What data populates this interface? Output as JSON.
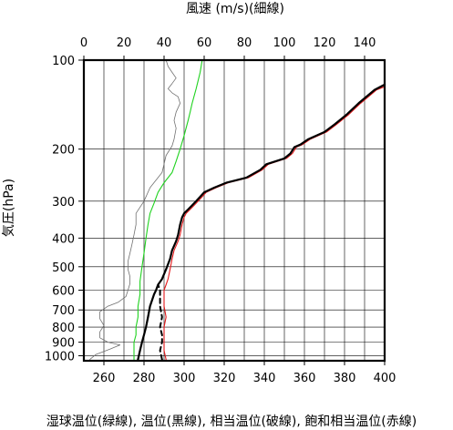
{
  "chart_data": {
    "type": "line",
    "title": "",
    "top_axis_title": "風速 (m/s)(細線)",
    "y_axis_title": "気圧(hPa)",
    "x_axis_title": "湿球温位(緑線), 温位(黒線), 相当温位(破線), 飽和相当温位(赤線)",
    "y_scale": "log-pressure",
    "xlim_temperature_K": [
      250,
      400
    ],
    "xlim_wind_ms": [
      0,
      150
    ],
    "ylim_pressure_hPa": [
      1040,
      100
    ],
    "grid": true,
    "bottom_ticks": [
      "260",
      "280",
      "300",
      "320",
      "340",
      "360",
      "380",
      "400"
    ],
    "top_ticks": [
      "0",
      "20",
      "40",
      "60",
      "80",
      "100",
      "120",
      "140"
    ],
    "left_ticks": [
      "100",
      "200",
      "300",
      "400",
      "500",
      "600",
      "700",
      "800",
      "900",
      "1000"
    ],
    "series": [
      {
        "name": "温位(黒線)",
        "color": "#000000",
        "axis": "temperature",
        "style": "solid-thick",
        "points": [
          [
            277,
            1030
          ],
          [
            278,
            960
          ],
          [
            279,
            900
          ],
          [
            280,
            850
          ],
          [
            281,
            800
          ],
          [
            282,
            740
          ],
          [
            283,
            680
          ],
          [
            285,
            620
          ],
          [
            286,
            600
          ],
          [
            287,
            575
          ],
          [
            289,
            550
          ],
          [
            291,
            510
          ],
          [
            293,
            470
          ],
          [
            294,
            440
          ],
          [
            296,
            410
          ],
          [
            297,
            390
          ],
          [
            298,
            360
          ],
          [
            299,
            340
          ],
          [
            300,
            330
          ],
          [
            302,
            320
          ],
          [
            304,
            310
          ],
          [
            306,
            300
          ],
          [
            308,
            290
          ],
          [
            310,
            280
          ],
          [
            315,
            270
          ],
          [
            321,
            260
          ],
          [
            331,
            250
          ],
          [
            338,
            235
          ],
          [
            341,
            225
          ],
          [
            350,
            215
          ],
          [
            353,
            207
          ],
          [
            355,
            197
          ],
          [
            358,
            193
          ],
          [
            362,
            185
          ],
          [
            370,
            175
          ],
          [
            375,
            165
          ],
          [
            381,
            153
          ],
          [
            387,
            140
          ],
          [
            395,
            126
          ],
          [
            399,
            122
          ],
          [
            400,
            121
          ]
        ]
      },
      {
        "name": "飽和相当温位(赤線)",
        "color": "#e41a1c",
        "axis": "temperature",
        "style": "solid-thin",
        "points": [
          [
            291,
            1030
          ],
          [
            290,
            960
          ],
          [
            290,
            900
          ],
          [
            290,
            850
          ],
          [
            290,
            800
          ],
          [
            291,
            740
          ],
          [
            290,
            680
          ],
          [
            290,
            640
          ],
          [
            290,
            600
          ],
          [
            291,
            575
          ],
          [
            292,
            550
          ],
          [
            293,
            510
          ],
          [
            294,
            470
          ],
          [
            295,
            440
          ],
          [
            297,
            410
          ],
          [
            298,
            390
          ],
          [
            299,
            360
          ],
          [
            300,
            340
          ],
          [
            301,
            330
          ],
          [
            303,
            320
          ],
          [
            305,
            310
          ],
          [
            307,
            300
          ],
          [
            309,
            290
          ],
          [
            311,
            280
          ],
          [
            316,
            270
          ],
          [
            322,
            260
          ],
          [
            332,
            250
          ],
          [
            339,
            235
          ],
          [
            342,
            225
          ],
          [
            351,
            215
          ],
          [
            354,
            207
          ],
          [
            356,
            197
          ],
          [
            359,
            193
          ],
          [
            363,
            185
          ],
          [
            371,
            175
          ],
          [
            376,
            165
          ],
          [
            382,
            153
          ],
          [
            388,
            140
          ],
          [
            396,
            126
          ],
          [
            400,
            123
          ]
        ]
      },
      {
        "name": "相当温位(破線)",
        "color": "#000000",
        "axis": "temperature",
        "style": "dashed",
        "points": [
          [
            289,
            1030
          ],
          [
            288,
            960
          ],
          [
            289,
            900
          ],
          [
            289,
            850
          ],
          [
            288,
            800
          ],
          [
            289,
            740
          ],
          [
            288,
            680
          ],
          [
            288,
            640
          ],
          [
            288,
            600
          ],
          [
            287,
            575
          ]
        ]
      },
      {
        "name": "湿球温位(緑線)",
        "color": "#1fd21f",
        "axis": "temperature",
        "style": "solid-thin",
        "points": [
          [
            275,
            1030
          ],
          [
            275,
            960
          ],
          [
            275,
            900
          ],
          [
            276,
            850
          ],
          [
            276,
            800
          ],
          [
            277,
            740
          ],
          [
            277,
            680
          ],
          [
            278,
            620
          ],
          [
            278,
            560
          ],
          [
            279,
            500
          ],
          [
            280,
            450
          ],
          [
            281,
            400
          ],
          [
            282,
            360
          ],
          [
            283,
            330
          ],
          [
            285,
            305
          ],
          [
            287,
            280
          ],
          [
            290,
            260
          ],
          [
            294,
            240
          ],
          [
            296,
            220
          ],
          [
            298,
            200
          ],
          [
            300,
            180
          ],
          [
            302,
            160
          ],
          [
            303,
            150
          ],
          [
            304,
            140
          ],
          [
            306,
            125
          ],
          [
            308,
            110
          ],
          [
            309,
            100
          ]
        ]
      },
      {
        "name": "風速(細線)",
        "color": "#707070",
        "axis": "wind",
        "style": "solid-hair",
        "points": [
          [
            3,
            1030
          ],
          [
            6,
            990
          ],
          [
            13,
            950
          ],
          [
            18,
            920
          ],
          [
            12,
            900
          ],
          [
            8,
            870
          ],
          [
            8,
            830
          ],
          [
            10,
            790
          ],
          [
            8,
            750
          ],
          [
            8,
            710
          ],
          [
            12,
            680
          ],
          [
            17,
            660
          ],
          [
            21,
            630
          ],
          [
            22,
            600
          ],
          [
            23,
            570
          ],
          [
            23,
            540
          ],
          [
            22,
            510
          ],
          [
            22,
            480
          ],
          [
            23,
            450
          ],
          [
            24,
            420
          ],
          [
            25,
            390
          ],
          [
            26,
            360
          ],
          [
            26,
            330
          ],
          [
            30,
            300
          ],
          [
            33,
            270
          ],
          [
            39,
            240
          ],
          [
            41,
            210
          ],
          [
            44,
            195
          ],
          [
            45,
            185
          ],
          [
            46,
            170
          ],
          [
            45,
            160
          ],
          [
            46,
            150
          ],
          [
            48,
            140
          ],
          [
            47,
            133
          ],
          [
            44,
            129
          ],
          [
            42,
            125
          ],
          [
            44,
            120
          ],
          [
            46,
            115
          ],
          [
            44,
            110
          ],
          [
            42,
            105
          ],
          [
            41,
            100
          ]
        ]
      }
    ]
  }
}
